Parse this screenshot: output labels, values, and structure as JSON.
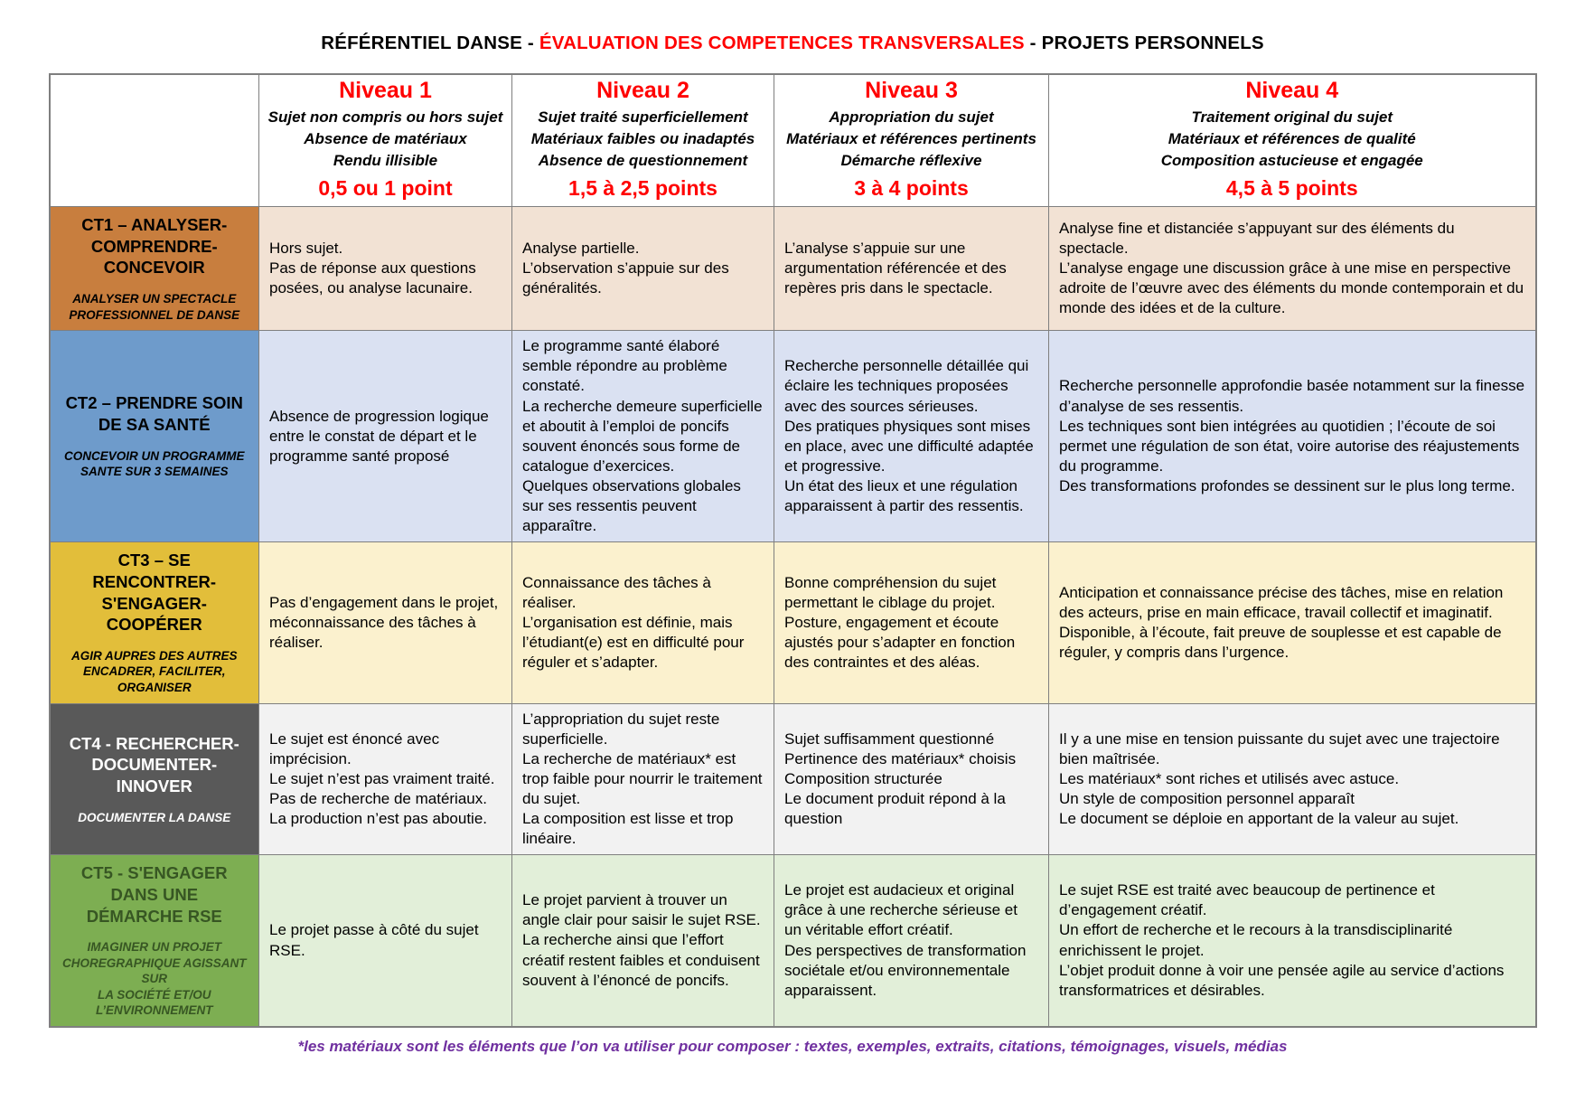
{
  "title": {
    "part1": "RÉFÉRENTIEL DANSE - ",
    "part2": "ÉVALUATION DES COMPETENCES TRANSVERSALES",
    "part3": " - PROJETS PERSONNELS"
  },
  "columns": [
    {
      "name": "Niveau 1",
      "descriptors": [
        "Sujet non compris ou hors sujet",
        "Absence de matériaux",
        "Rendu illisible"
      ],
      "points": "0,5 ou 1 point"
    },
    {
      "name": "Niveau 2",
      "descriptors": [
        "Sujet traité superficiellement",
        "Matériaux faibles ou inadaptés",
        "Absence de questionnement"
      ],
      "points": "1,5 à 2,5 points"
    },
    {
      "name": "Niveau 3",
      "descriptors": [
        "Appropriation du sujet",
        "Matériaux et références pertinents",
        "Démarche réflexive"
      ],
      "points": "3 à 4 points"
    },
    {
      "name": "Niveau 4",
      "descriptors": [
        "Traitement original du sujet",
        "Matériaux et références de qualité",
        "Composition astucieuse et engagée"
      ],
      "points": "4,5 à 5 points"
    }
  ],
  "rows": [
    {
      "id": "CT1",
      "title": "CT1 – ANALYSER-COMPRENDRE-CONCEVOIR",
      "subtitle": "ANALYSER UN SPECTACLE\nPROFESSIONNEL DE DANSE",
      "colors": {
        "header_bg": "#c87e3e",
        "header_text": "#000000",
        "cell_bg": "#f2e2d4"
      },
      "cells": [
        [
          "Hors sujet.",
          "Pas de réponse aux questions posées, ou analyse lacunaire."
        ],
        [
          "Analyse partielle.",
          "L’observation s’appuie sur des généralités."
        ],
        [
          "L’analyse s’appuie sur une argumentation référencée et des repères pris dans le spectacle."
        ],
        [
          "Analyse fine et distanciée s’appuyant sur des éléments du spectacle.",
          "L’analyse engage une discussion grâce à une mise en perspective adroite de l’œuvre avec des éléments du monde contemporain et du monde des idées et de la culture."
        ]
      ]
    },
    {
      "id": "CT2",
      "title": "CT2 – PRENDRE SOIN DE SA SANTÉ",
      "subtitle": "CONCEVOIR UN PROGRAMME\nSANTE SUR 3 SEMAINES",
      "colors": {
        "header_bg": "#6e9bcb",
        "header_text": "#000000",
        "cell_bg": "#dae1f2"
      },
      "cells": [
        [
          "Absence de progression logique entre le constat de départ et le programme santé proposé"
        ],
        [
          "Le programme santé élaboré semble répondre au problème constaté.",
          "La recherche demeure superficielle et aboutit à l’emploi de poncifs souvent énoncés sous forme de catalogue d’exercices.",
          "Quelques observations globales sur ses ressentis peuvent apparaître."
        ],
        [
          "Recherche personnelle détaillée qui éclaire les techniques proposées avec des sources sérieuses.",
          "Des pratiques physiques sont mises en place, avec une difficulté adaptée et progressive.",
          "Un état des lieux et une régulation apparaissent à partir des ressentis."
        ],
        [
          "Recherche personnelle approfondie basée notamment sur la finesse d’analyse de ses ressentis.",
          "Les techniques sont bien intégrées au quotidien ; l’écoute de soi permet une régulation de son état, voire autorise des réajustements du programme.",
          "Des transformations profondes se dessinent sur le plus long terme."
        ]
      ]
    },
    {
      "id": "CT3",
      "title": "CT3 – SE RENCONTRER-S'ENGAGER-COOPÉRER",
      "subtitle": "AGIR AUPRES DES AUTRES\nENCADRER, FACILITER, ORGANISER",
      "colors": {
        "header_bg": "#e2be3a",
        "header_text": "#000000",
        "cell_bg": "#fbf1ce"
      },
      "cells": [
        [
          "Pas d’engagement dans le projet, méconnaissance des tâches à réaliser."
        ],
        [
          "Connaissance des tâches à réaliser.",
          "L’organisation est définie, mais l’étudiant(e) est en difficulté pour réguler et s’adapter."
        ],
        [
          "Bonne compréhension du sujet permettant le ciblage du projet.",
          "Posture, engagement et écoute ajustés pour s’adapter en fonction des contraintes et des aléas."
        ],
        [
          "Anticipation et connaissance précise des tâches, mise en relation des acteurs, prise en main efficace, travail collectif et imaginatif.",
          "Disponible, à l’écoute, fait preuve de souplesse et est capable de réguler, y compris dans l’urgence."
        ]
      ]
    },
    {
      "id": "CT4",
      "title": "CT4 - RECHERCHER-DOCUMENTER-INNOVER",
      "subtitle": "DOCUMENTER LA DANSE",
      "colors": {
        "header_bg": "#595959",
        "header_text": "#ffffff",
        "cell_bg": "#f2f2f2"
      },
      "cells": [
        [
          "Le sujet est énoncé avec imprécision.",
          "Le sujet n’est pas vraiment traité.",
          "Pas de recherche de matériaux.",
          "La production n’est pas aboutie."
        ],
        [
          "L’appropriation du sujet reste superficielle.",
          "La recherche de matériaux* est trop faible pour nourrir le traitement du sujet.",
          "La composition est lisse et trop linéaire."
        ],
        [
          "Sujet suffisamment questionné",
          "Pertinence des matériaux* choisis",
          "Composition structurée",
          "Le document produit répond à la question"
        ],
        [
          "Il y a une mise en tension puissante du sujet avec une trajectoire bien maîtrisée.",
          "Les matériaux* sont riches et utilisés avec astuce.",
          "Un style de composition personnel apparaît",
          "Le document se déploie en apportant de la valeur au sujet."
        ]
      ]
    },
    {
      "id": "CT5",
      "title": "CT5 - S'ENGAGER DANS UNE DÉMARCHE RSE",
      "subtitle": "IMAGINER UN PROJET\nCHOREGRAPHIQUE AGISSANT SUR\nLA SOCIÉTÉ ET/OU\nL’ENVIRONNEMENT",
      "colors": {
        "header_bg": "#7dae52",
        "header_text": "#375623",
        "cell_bg": "#e2efd9"
      },
      "cells": [
        [
          "Le projet passe à côté du sujet RSE."
        ],
        [
          "Le projet parvient à trouver un angle clair pour saisir le sujet RSE.",
          "La recherche ainsi que l’effort créatif restent faibles et conduisent souvent à l’énoncé de poncifs."
        ],
        [
          "Le projet est audacieux et original grâce à une recherche sérieuse et un véritable effort créatif.",
          "Des perspectives de transformation sociétale et/ou environnementale apparaissent."
        ],
        [
          "Le sujet RSE est traité avec beaucoup de pertinence et d’engagement créatif.",
          "Un effort de recherche et le recours à la transdisciplinarité enrichissent le projet.",
          "L’objet produit donne à voir une pensée agile au service d’actions transformatrices et désirables."
        ]
      ]
    }
  ],
  "footnote": "*les matériaux sont les éléments que l’on va utiliser pour composer : textes, exemples, extraits, citations, témoignages, visuels, médias"
}
